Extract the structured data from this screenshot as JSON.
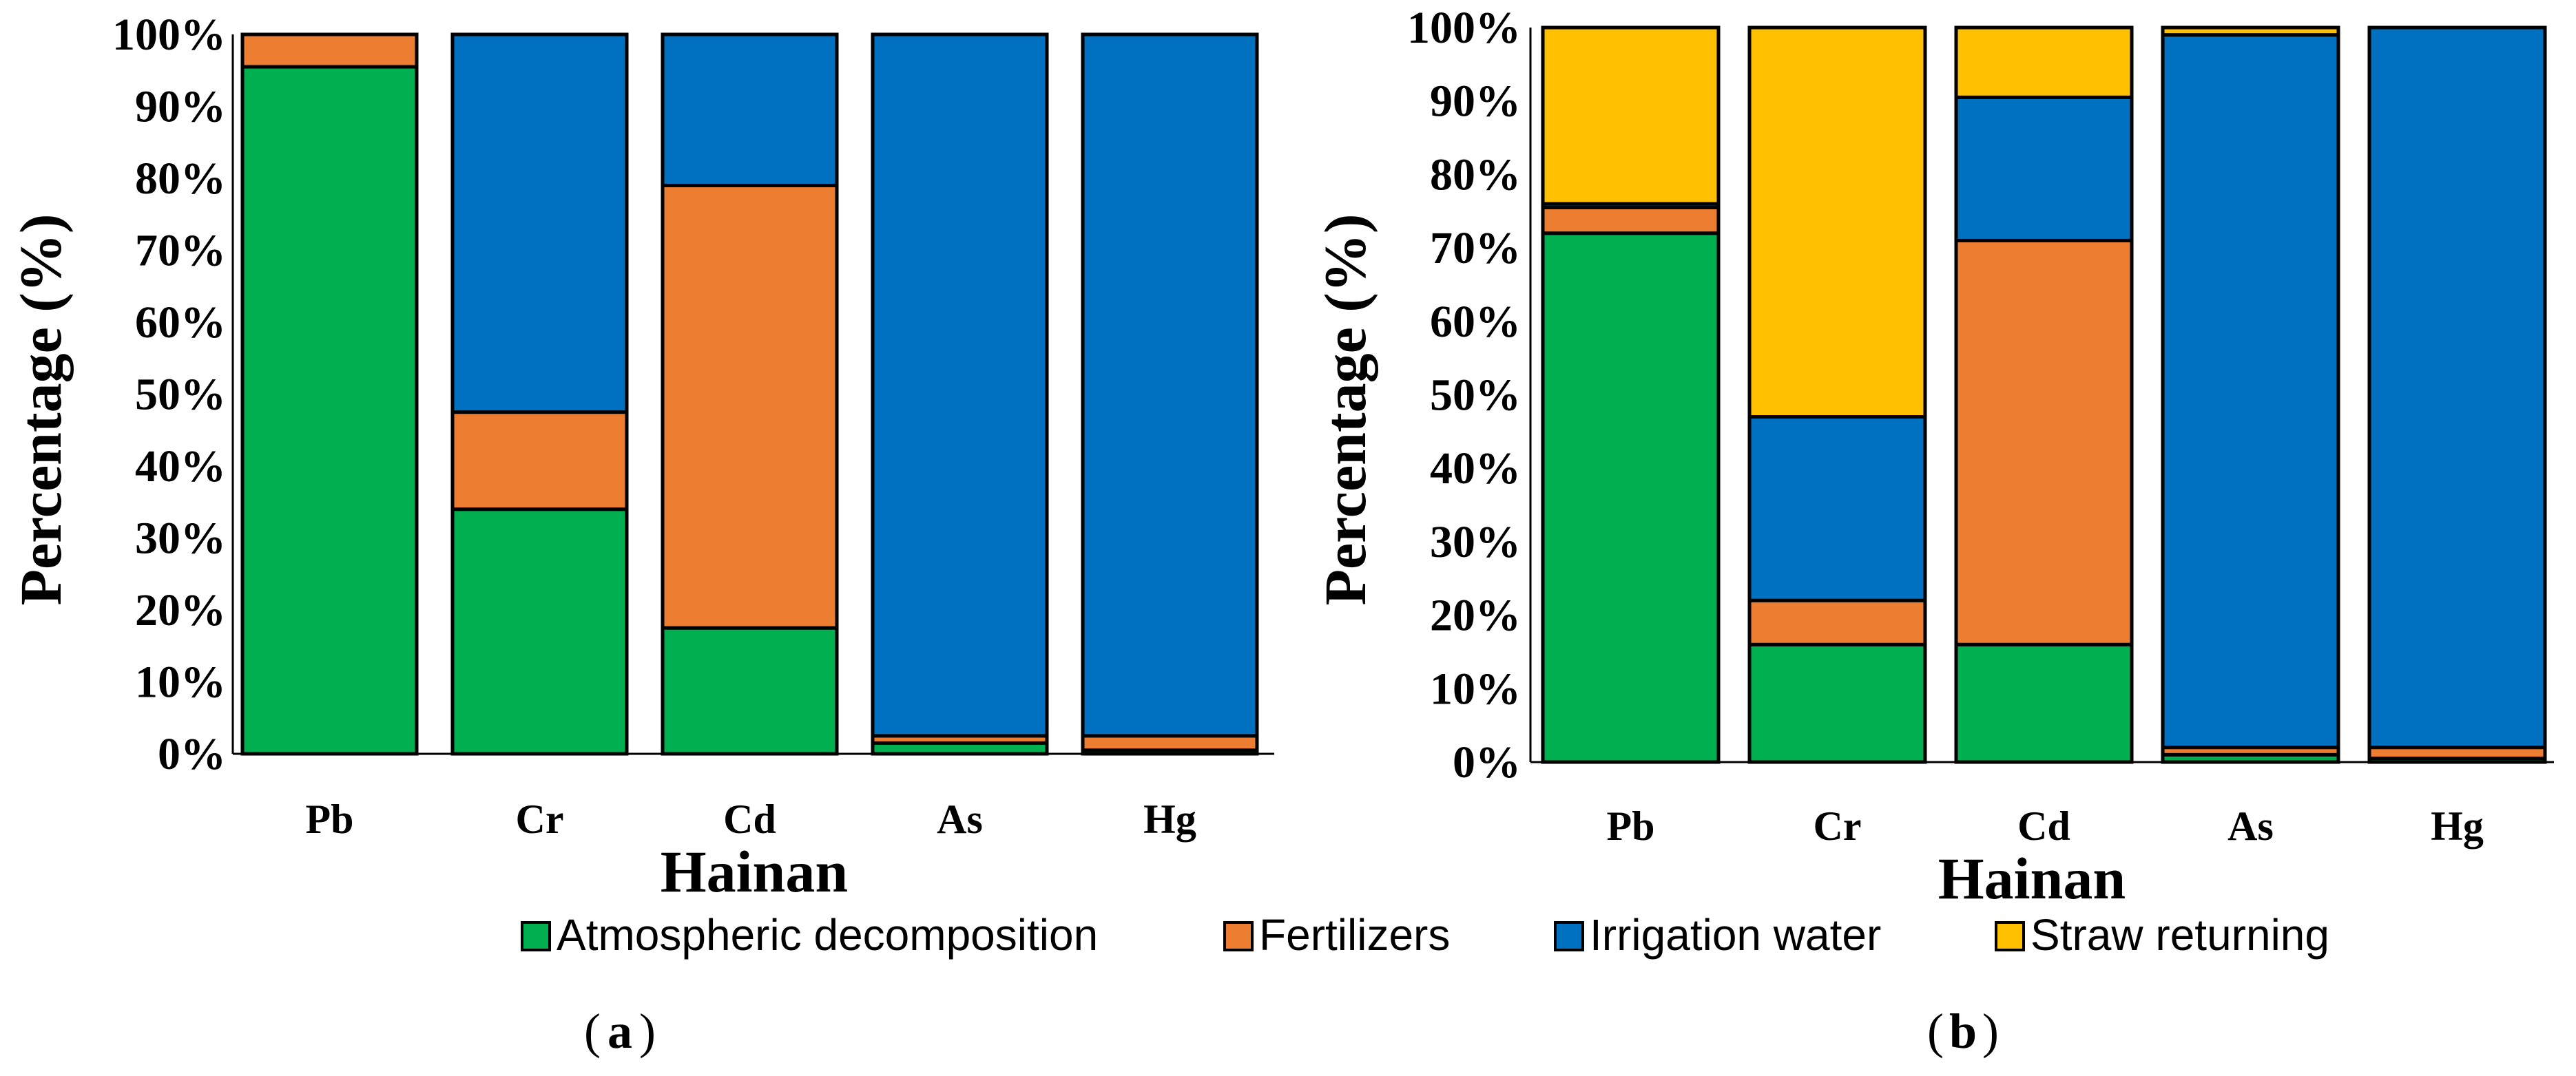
{
  "colors": {
    "Atmospheric decomposition": "#00b050",
    "Fertilizers": "#ed7d31",
    "Irrigation water": "#0070c0",
    "Straw returning": "#ffc000"
  },
  "legend": {
    "items": [
      "Atmospheric decomposition",
      "Fertilizers",
      "Irrigation water",
      "Straw returning"
    ]
  },
  "chart_data": [
    {
      "type": "bar",
      "stacked": true,
      "panel_label": "a",
      "title": "",
      "xlabel": "Hainan",
      "ylabel": "Percentage (%)",
      "ylim": [
        0,
        100
      ],
      "yticks": [
        "0%",
        "10%",
        "20%",
        "30%",
        "40%",
        "50%",
        "60%",
        "70%",
        "80%",
        "90%",
        "100%"
      ],
      "categories": [
        "Pb",
        "Cr",
        "Cd",
        "As",
        "Hg"
      ],
      "series": [
        {
          "name": "Atmospheric decomposition",
          "values": [
            95.5,
            34,
            17.5,
            1.5,
            0.5
          ]
        },
        {
          "name": "Fertilizers",
          "values": [
            4.5,
            13.5,
            61.5,
            1,
            2
          ]
        },
        {
          "name": "Irrigation water",
          "values": [
            0,
            52.5,
            21,
            97.5,
            97.5
          ]
        }
      ]
    },
    {
      "type": "bar",
      "stacked": true,
      "panel_label": "b",
      "title": "",
      "xlabel": "Hainan",
      "ylabel": "Percentage (%)",
      "ylim": [
        0,
        100
      ],
      "yticks": [
        "0%",
        "10%",
        "20%",
        "30%",
        "40%",
        "50%",
        "60%",
        "70%",
        "80%",
        "90%",
        "100%"
      ],
      "categories": [
        "Pb",
        "Cr",
        "Cd",
        "As",
        "Hg"
      ],
      "series": [
        {
          "name": "Atmospheric decomposition",
          "values": [
            72,
            16,
            16,
            1,
            0.5
          ]
        },
        {
          "name": "Fertilizers",
          "values": [
            3.5,
            6,
            55,
            1,
            1.5
          ]
        },
        {
          "name": "Irrigation water",
          "values": [
            0.5,
            25,
            19.5,
            97,
            98
          ]
        },
        {
          "name": "Straw returning",
          "values": [
            24,
            53,
            9.5,
            1,
            0
          ]
        }
      ]
    }
  ]
}
